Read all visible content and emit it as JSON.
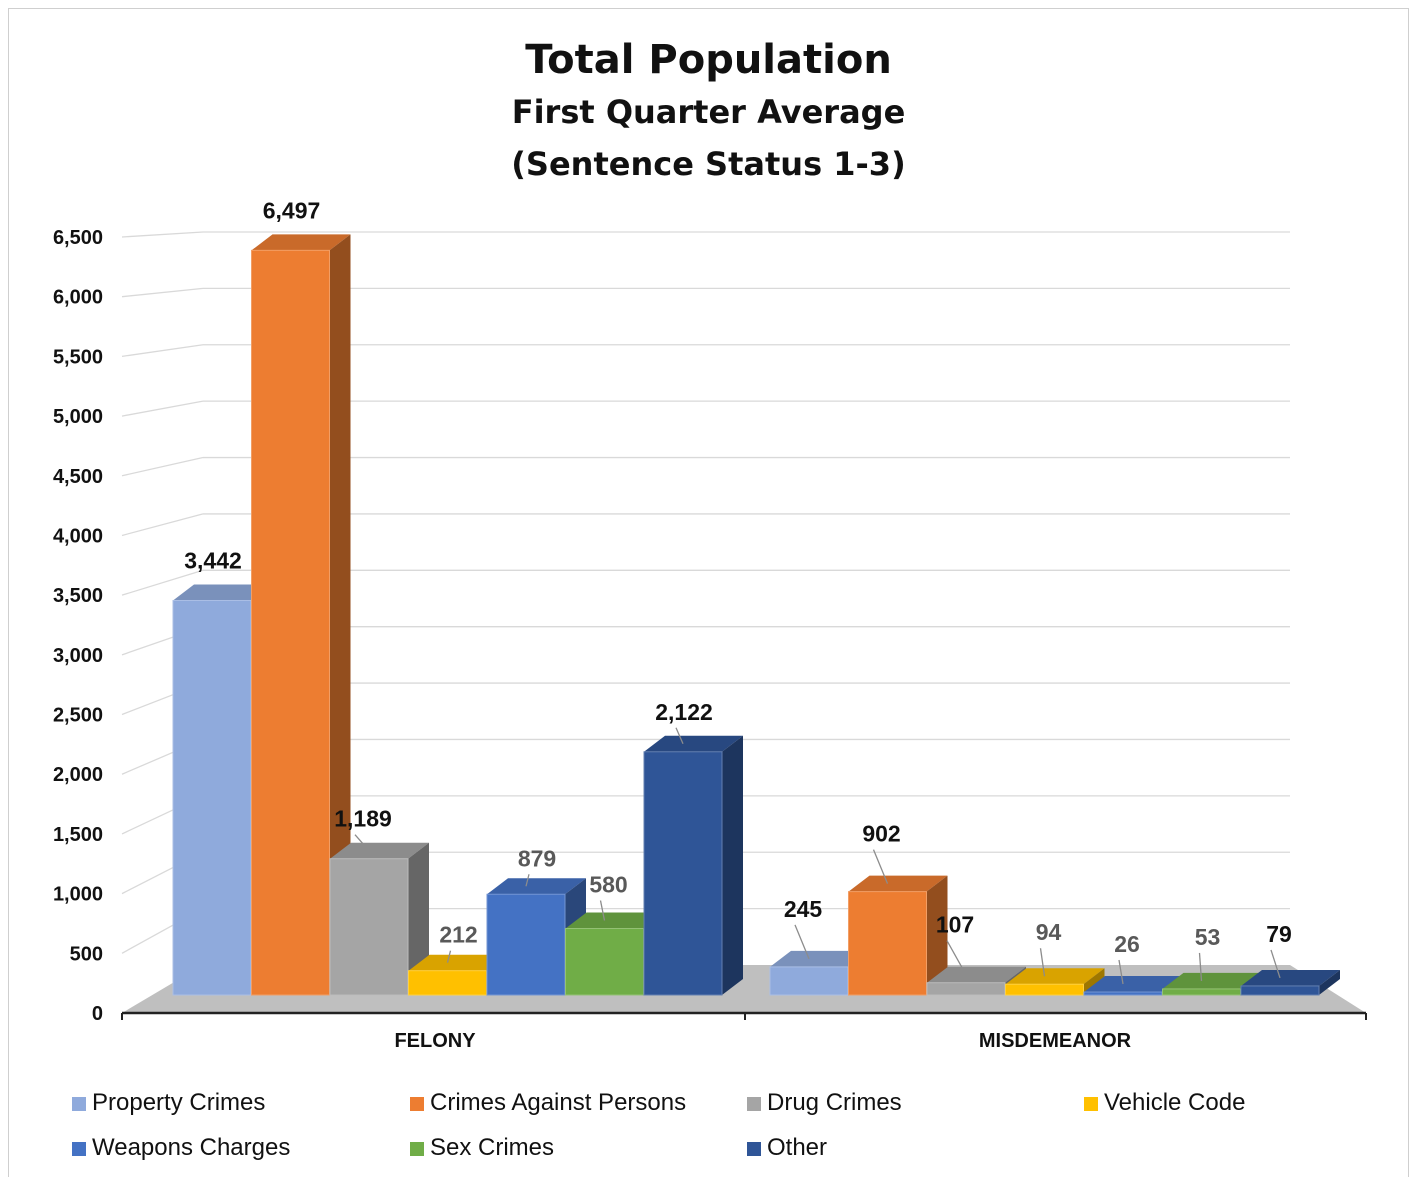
{
  "chart_data": {
    "type": "bar",
    "title": "Total Population",
    "subtitle": [
      "First Quarter Average",
      "(Sentence Status 1-3)"
    ],
    "categories": [
      "FELONY",
      "MISDEMEANOR"
    ],
    "series": [
      {
        "name": "Property Crimes",
        "color": "#8faadc",
        "values": [
          3442,
          245
        ],
        "labels": [
          "3,442",
          "245"
        ]
      },
      {
        "name": "Crimes Against Persons",
        "color": "#ed7d31",
        "values": [
          6497,
          902
        ],
        "labels": [
          "6,497",
          "902"
        ]
      },
      {
        "name": "Drug Crimes",
        "color": "#a5a5a5",
        "values": [
          1189,
          107
        ],
        "labels": [
          "1,189",
          "107"
        ]
      },
      {
        "name": "Vehicle Code",
        "color": "#ffc000",
        "values": [
          212,
          94
        ],
        "labels": [
          "212",
          "94"
        ]
      },
      {
        "name": "Weapons Charges",
        "color": "#4472c4",
        "values": [
          879,
          26
        ],
        "labels": [
          "879",
          "26"
        ]
      },
      {
        "name": "Sex Crimes",
        "color": "#70ad47",
        "values": [
          580,
          53
        ],
        "labels": [
          "580",
          "53"
        ]
      },
      {
        "name": "Other",
        "color": "#2f5597",
        "values": [
          2122,
          79
        ],
        "labels": [
          "2,122",
          "79"
        ]
      }
    ],
    "y_ticks": [
      "0",
      "500",
      "1,000",
      "1,500",
      "2,000",
      "2,500",
      "3,000",
      "3,500",
      "4,000",
      "4,500",
      "5,000",
      "5,500",
      "6,000",
      "6,500"
    ],
    "ylim": [
      0,
      6500
    ],
    "grid": true,
    "legend_position": "bottom",
    "style": "3d-clustered-column"
  }
}
